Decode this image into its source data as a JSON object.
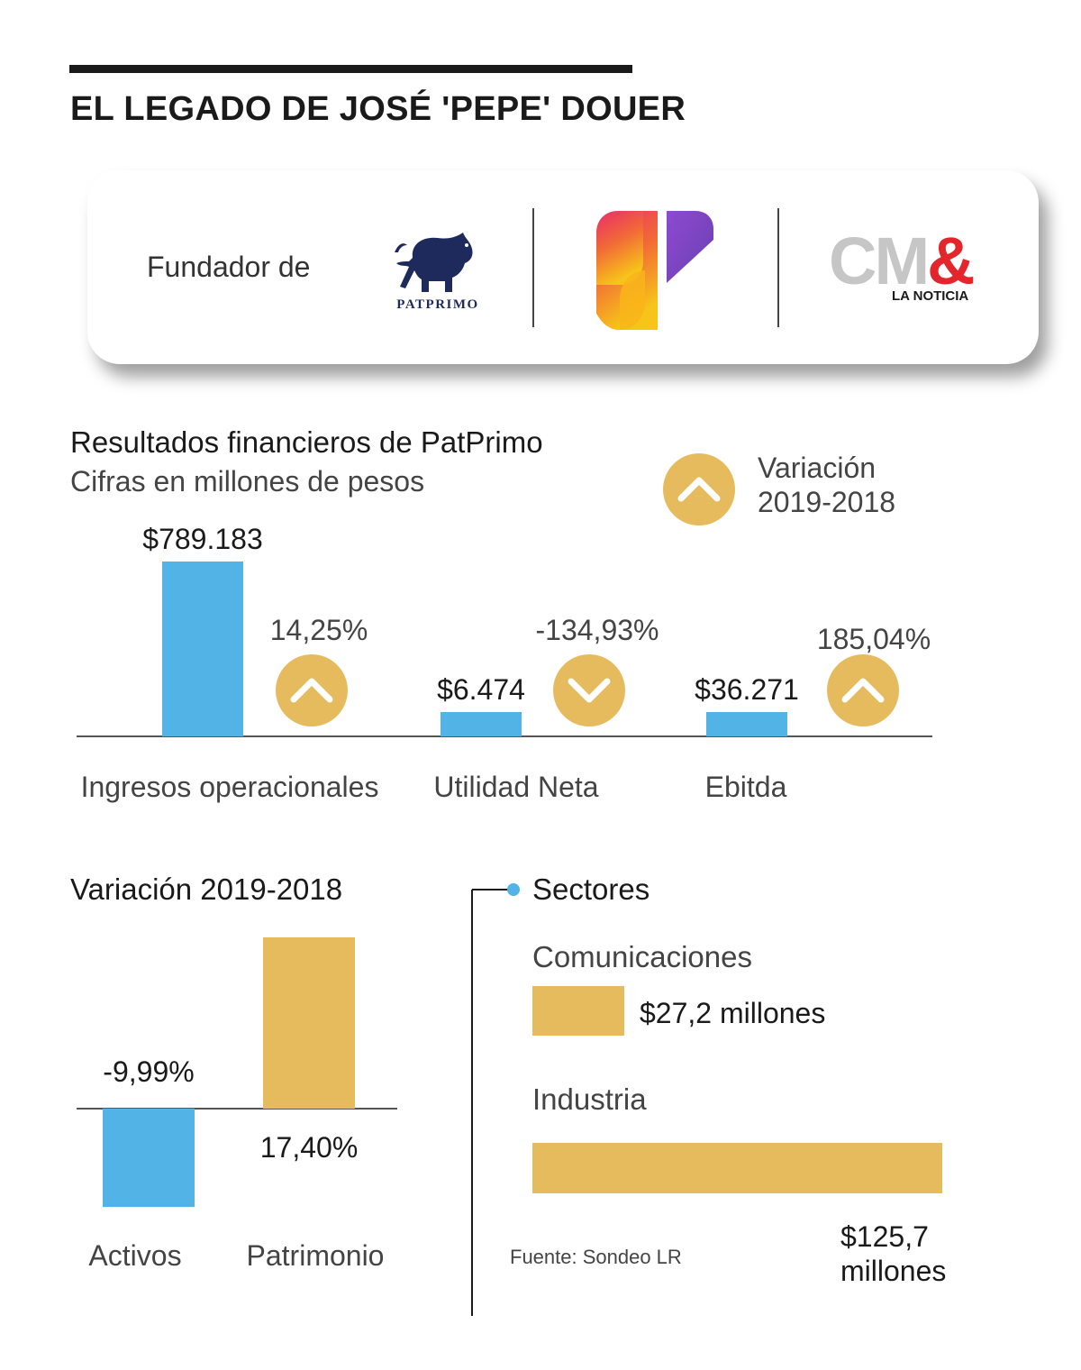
{
  "header": {
    "title": "EL LEGADO DE JOSÉ 'PEPE' DOUER"
  },
  "founder_card": {
    "label": "Fundador de",
    "logos": {
      "patprimo": "PATPRIMO",
      "cm_brand": "CM",
      "cm_amp": "&",
      "cm_tagline": "LA NOTICIA"
    }
  },
  "colors": {
    "blue": "#52b3e6",
    "gold": "#e5bb5e",
    "text": "#1a1a1a"
  },
  "chart_data": [
    {
      "type": "bar",
      "title": "Resultados financieros de PatPrimo",
      "subtitle": "Cifras en millones de pesos",
      "legend": {
        "icon": "arrow-up-circle",
        "label_line1": "Variación",
        "label_line2": "2019-2018",
        "position": "top-right"
      },
      "categories": [
        "Ingresos operacionales",
        "Utilidad Neta",
        "Ebitda"
      ],
      "values": [
        789183,
        6474,
        36271
      ],
      "value_labels": [
        "$789.183",
        "$6.474",
        "$36.271"
      ],
      "variation": [
        {
          "label": "14,25%",
          "direction": "up"
        },
        {
          "label": "-134,93%",
          "direction": "down"
        },
        {
          "label": "185,04%",
          "direction": "up"
        }
      ],
      "ylim": [
        0,
        789183
      ]
    },
    {
      "type": "bar",
      "title": "Variación 2019-2018",
      "categories": [
        "Activos",
        "Patrimonio"
      ],
      "values": [
        -9.99,
        17.4
      ],
      "value_labels": [
        "-9,99%",
        "17,40%"
      ],
      "ylim": [
        -9.99,
        17.4
      ]
    },
    {
      "type": "bar",
      "orientation": "horizontal",
      "title": "Sectores",
      "categories": [
        "Comunicaciones",
        "Industria"
      ],
      "values": [
        27.2,
        125.7
      ],
      "value_labels": [
        "$27,2 millones",
        "$125,7 millones"
      ],
      "value_label_industria_lines": [
        "$125,7",
        "millones"
      ]
    }
  ],
  "source": "Fuente: Sondeo LR"
}
